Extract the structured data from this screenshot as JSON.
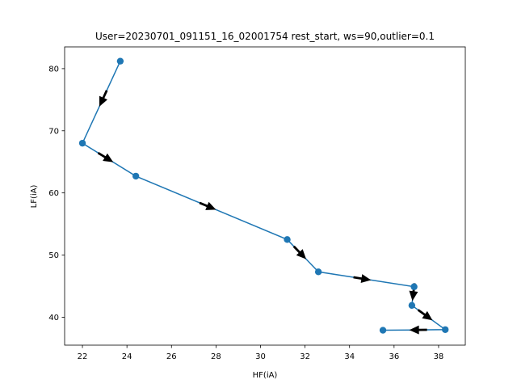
{
  "chart_data": {
    "type": "line",
    "title": "User=20230701_091151_16_02001754 rest_start, ws=90,outlier=0.1",
    "xlabel": "HF(iA)",
    "ylabel": "LF(iA)",
    "xlim": [
      21.2,
      39.2
    ],
    "ylim": [
      35.5,
      83.5
    ],
    "xticks": [
      22,
      24,
      26,
      28,
      30,
      32,
      34,
      36,
      38
    ],
    "yticks": [
      40,
      50,
      60,
      70,
      80
    ],
    "grid": false,
    "line_color": "#1f77b4",
    "arrow_color": "#000000",
    "series": [
      {
        "x": [
          23.7,
          22.0,
          24.4,
          31.2,
          32.6,
          36.9,
          36.8,
          38.3,
          35.5
        ],
        "y": [
          81.2,
          68.0,
          62.7,
          52.5,
          47.3,
          44.9,
          41.9,
          38.0,
          37.9
        ]
      }
    ]
  }
}
